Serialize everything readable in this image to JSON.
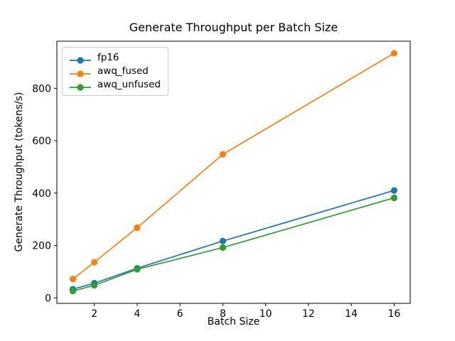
{
  "chart_data": {
    "type": "line",
    "title": "Generate Throughput per Batch Size",
    "xlabel": "Batch Size",
    "ylabel": "Generate Throughput (tokens/s)",
    "x": [
      1,
      2,
      4,
      8,
      16
    ],
    "series": [
      {
        "name": "fp16",
        "color": "#1f77b4",
        "values": [
          33,
          56,
          113,
          217,
          410
        ]
      },
      {
        "name": "awq_fused",
        "color": "#ff7f0e",
        "values": [
          72,
          136,
          268,
          548,
          934
        ]
      },
      {
        "name": "awq_unfused",
        "color": "#2ca02c",
        "values": [
          26,
          48,
          109,
          192,
          382
        ]
      }
    ],
    "x_ticks": [
      2,
      4,
      6,
      8,
      10,
      12,
      14,
      16
    ],
    "y_ticks": [
      0,
      200,
      400,
      600,
      800
    ],
    "xlim": [
      0.25,
      16.75
    ],
    "ylim": [
      -21,
      980
    ],
    "grid": false,
    "marker": "circle",
    "legend_position": "upper left",
    "background_color": "#ffffff",
    "axis_color": "#000000"
  }
}
